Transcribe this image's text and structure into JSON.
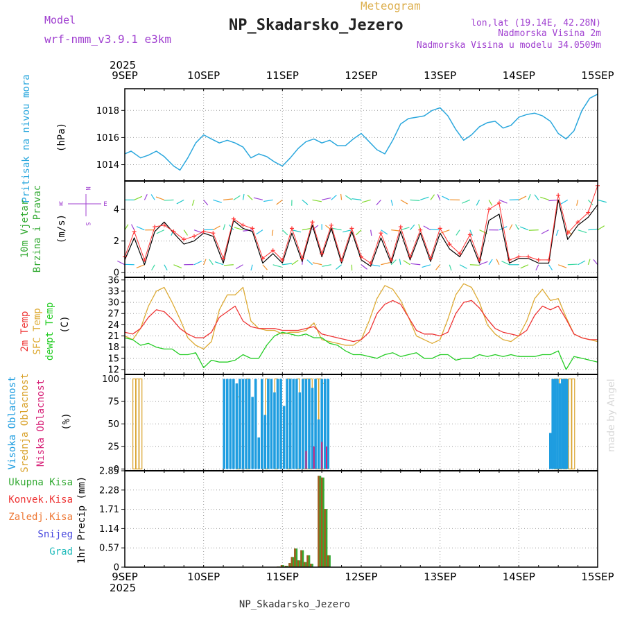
{
  "header": {
    "model_label": "Model",
    "model_name": "wrf-nmm_v3.9.1 e3km",
    "chart_kind": "Meteogram",
    "station": "NP_Skadarsko_Jezero",
    "lonlat": "lon,lat (19.14E, 42.28N)",
    "altitude": "Nadmorska Visina 2m",
    "model_altitude": "Nadmorska Visina u modelu 34.0509m",
    "footer_station": "NP_Skadarsko_Jezero",
    "watermark": "made by Angel"
  },
  "colors": {
    "pressure": "#2aa7dd",
    "wind_speed": "#000000",
    "wind_gust": "#ff3333",
    "temp2m": "#ee3333",
    "sfc_temp": "#ddaa33",
    "dewpt": "#22cc22",
    "cloud_high": "#1e9de0",
    "cloud_mid": "#d9a22b",
    "cloud_low": "#d8257a",
    "precip_total": "#33aa33",
    "precip_conv": "#ee3333",
    "precip_frozen": "#ee7733",
    "precip_snow": "#4444dd",
    "precip_graupel": "#22bbbb",
    "model_purple": "#a040d0",
    "meteogram_gold": "#ddb050"
  },
  "axis": {
    "year_top": "2025",
    "year_bottom": "2025",
    "dates": [
      "9SEP",
      "10SEP",
      "11SEP",
      "12SEP",
      "13SEP",
      "14SEP",
      "15SEP"
    ]
  },
  "chart_data": [
    {
      "type": "line",
      "panel": "pressure",
      "ylabel_main": "Pritisak na nivou mora",
      "unit": "(hPa)",
      "yticks": [
        "1014",
        "1016",
        "1018"
      ],
      "ylim": [
        1012.8,
        1019.6
      ],
      "grid": true,
      "x_days": [
        0,
        0.08,
        0.2,
        0.3,
        0.4,
        0.5,
        0.62,
        0.7,
        0.8,
        0.9,
        1.0,
        1.1,
        1.2,
        1.3,
        1.4,
        1.5,
        1.6,
        1.7,
        1.8,
        1.9,
        2.0,
        2.1,
        2.2,
        2.3,
        2.4,
        2.5,
        2.6,
        2.7,
        2.8,
        2.9,
        3.0,
        3.1,
        3.2,
        3.3,
        3.4,
        3.5,
        3.6,
        3.7,
        3.8,
        3.9,
        4.0,
        4.1,
        4.2,
        4.3,
        4.4,
        4.5,
        4.6,
        4.7,
        4.8,
        4.9,
        5.0,
        5.1,
        5.2,
        5.3,
        5.4,
        5.5,
        5.6,
        5.7,
        5.8,
        5.9,
        6.0
      ],
      "series": [
        {
          "values": [
            1014.8,
            1015.0,
            1014.5,
            1014.7,
            1015.0,
            1014.6,
            1013.9,
            1013.6,
            1014.5,
            1015.6,
            1016.2,
            1015.9,
            1015.6,
            1015.8,
            1015.6,
            1015.3,
            1014.5,
            1014.8,
            1014.6,
            1014.2,
            1013.9,
            1014.5,
            1015.2,
            1015.7,
            1015.9,
            1015.6,
            1015.8,
            1015.4,
            1015.4,
            1015.9,
            1016.3,
            1015.7,
            1015.1,
            1014.8,
            1015.8,
            1017.0,
            1017.4,
            1017.5,
            1017.6,
            1018.0,
            1018.2,
            1017.6,
            1016.6,
            1015.8,
            1016.2,
            1016.8,
            1017.1,
            1017.2,
            1016.7,
            1016.9,
            1017.5,
            1017.7,
            1017.8,
            1017.6,
            1017.2,
            1016.3,
            1015.9,
            1016.5,
            1018.0,
            1018.9,
            1019.2
          ]
        }
      ]
    },
    {
      "type": "line",
      "panel": "wind",
      "ylabel_main": "10m Vjetar",
      "ylabel_sub": "Brzina i Pravac",
      "unit": "(m/s)",
      "yticks": [
        "0",
        "2",
        "4"
      ],
      "ylim": [
        -0.3,
        5.8
      ],
      "grid": true,
      "compass_n": "N",
      "compass_s": "S",
      "compass_w": "W",
      "compass_e": "E",
      "x_days": [
        0,
        0.12,
        0.25,
        0.38,
        0.5,
        0.62,
        0.75,
        0.88,
        1.0,
        1.12,
        1.25,
        1.38,
        1.5,
        1.62,
        1.75,
        1.88,
        2.0,
        2.12,
        2.25,
        2.38,
        2.5,
        2.62,
        2.75,
        2.88,
        3.0,
        3.12,
        3.25,
        3.38,
        3.5,
        3.62,
        3.75,
        3.88,
        4.0,
        4.12,
        4.25,
        4.38,
        4.5,
        4.62,
        4.75,
        4.88,
        5.0,
        5.12,
        5.25,
        5.38,
        5.5,
        5.62,
        5.75,
        5.88,
        6.0
      ],
      "series": [
        {
          "name": "speed",
          "values": [
            0.8,
            2.2,
            0.5,
            2.6,
            3.2,
            2.5,
            1.8,
            2.0,
            2.5,
            2.3,
            0.6,
            3.3,
            2.8,
            2.6,
            0.6,
            1.2,
            0.6,
            2.5,
            0.7,
            3.0,
            1.0,
            2.8,
            0.6,
            2.6,
            0.8,
            0.4,
            2.2,
            0.6,
            2.6,
            0.8,
            2.5,
            0.7,
            2.5,
            1.5,
            1.0,
            2.1,
            0.6,
            3.3,
            3.7,
            0.6,
            0.9,
            0.9,
            0.6,
            0.6,
            4.6,
            2.1,
            3.0,
            3.5,
            4.3
          ]
        },
        {
          "name": "gust",
          "values": [
            1.0,
            2.6,
            0.8,
            2.9,
            3.0,
            2.6,
            2.1,
            2.3,
            2.6,
            2.5,
            0.9,
            3.4,
            3.0,
            2.8,
            0.9,
            1.4,
            0.8,
            2.8,
            0.9,
            3.2,
            1.2,
            3.0,
            0.8,
            2.8,
            1.0,
            0.6,
            2.5,
            0.8,
            2.9,
            1.0,
            2.7,
            0.9,
            2.8,
            1.8,
            1.2,
            2.4,
            0.8,
            4.0,
            4.4,
            0.8,
            1.0,
            1.0,
            0.8,
            0.8,
            4.9,
            2.5,
            3.2,
            3.8,
            5.5
          ]
        }
      ]
    },
    {
      "type": "line",
      "panel": "temperature",
      "ylabel_lines": [
        "2m Temp",
        "SFC Temp",
        "dewpt Temp"
      ],
      "unit": "(C)",
      "yticks": [
        "12",
        "15",
        "18",
        "21",
        "24",
        "27",
        "30",
        "33",
        "36"
      ],
      "ylim": [
        10.7,
        36.7
      ],
      "grid": true,
      "x_days": [
        0,
        0.1,
        0.2,
        0.3,
        0.4,
        0.5,
        0.6,
        0.7,
        0.8,
        0.9,
        1.0,
        1.1,
        1.2,
        1.3,
        1.4,
        1.5,
        1.6,
        1.7,
        1.8,
        1.9,
        2.0,
        2.1,
        2.2,
        2.3,
        2.4,
        2.5,
        2.6,
        2.7,
        2.8,
        2.9,
        3.0,
        3.1,
        3.2,
        3.3,
        3.4,
        3.5,
        3.6,
        3.7,
        3.8,
        3.9,
        4.0,
        4.1,
        4.2,
        4.3,
        4.4,
        4.5,
        4.6,
        4.7,
        4.8,
        4.9,
        5.0,
        5.1,
        5.2,
        5.3,
        5.4,
        5.5,
        5.6,
        5.7,
        5.8,
        5.9,
        6.0
      ],
      "series": [
        {
          "name": "2m Temp",
          "values": [
            22,
            21.5,
            23,
            26,
            28,
            27.5,
            25.5,
            23,
            21.5,
            20.5,
            20.5,
            22,
            26,
            27.5,
            29,
            25,
            23.5,
            23,
            23,
            23,
            22.5,
            22.5,
            22.5,
            23,
            23.5,
            21.5,
            21,
            20.5,
            20,
            19.5,
            20,
            22,
            27,
            29.5,
            30.5,
            29.5,
            26,
            22.5,
            21.5,
            21.5,
            21,
            22,
            27,
            30,
            30.5,
            28.5,
            25.5,
            23,
            22,
            21.5,
            21,
            22.5,
            26.5,
            29,
            28,
            29,
            25.5,
            21.5,
            20.5,
            20,
            20
          ]
        },
        {
          "name": "SFC Temp",
          "values": [
            21,
            20,
            23,
            29,
            33,
            34,
            30,
            25.5,
            20.5,
            18.5,
            17.5,
            19.5,
            28,
            32,
            32,
            34,
            25,
            23,
            22.5,
            22.5,
            21.5,
            22,
            22,
            22.5,
            24.5,
            20,
            19.5,
            19,
            18.5,
            18.5,
            20,
            25,
            31,
            34.5,
            33.5,
            30.5,
            26,
            21,
            20,
            19,
            20,
            25.5,
            32,
            35,
            34,
            30,
            24,
            21.5,
            20,
            19.5,
            21,
            25,
            31,
            33.5,
            30.5,
            31,
            26,
            21.5,
            20.5,
            20,
            19.5
          ]
        },
        {
          "name": "dewpt Temp",
          "values": [
            20.5,
            20,
            18.5,
            19,
            18,
            17.5,
            17.5,
            16,
            16,
            16.5,
            12.5,
            14.5,
            14,
            14,
            14.5,
            16,
            15,
            15,
            18.5,
            21,
            22,
            21.5,
            21,
            21.5,
            20.5,
            20.5,
            19,
            18.5,
            17,
            16,
            16,
            15.5,
            15,
            16,
            16.5,
            15.5,
            16,
            16.5,
            15,
            15,
            16,
            16,
            14.5,
            15,
            15,
            16,
            15.5,
            16,
            15.5,
            16,
            15.5,
            15.5,
            15.5,
            16,
            16,
            17,
            12,
            15.5,
            15,
            14.5,
            14
          ]
        }
      ]
    },
    {
      "type": "bar",
      "panel": "clouds",
      "ylabel_lines": [
        "Visoka Oblacnost",
        "Srednja Oblacnost",
        "Niska Oblacnost"
      ],
      "unit": "(%)",
      "yticks": [
        "0",
        "25",
        "50",
        "75",
        "100"
      ],
      "ylim": [
        -2,
        105
      ],
      "grid": true,
      "high_x_days": [
        1.26,
        1.3,
        1.34,
        1.38,
        1.42,
        1.46,
        1.5,
        1.54,
        1.58,
        1.62,
        1.66,
        1.7,
        1.74,
        1.78,
        1.82,
        1.86,
        1.9,
        1.94,
        1.98,
        2.02,
        2.06,
        2.1,
        2.14,
        2.18,
        2.22,
        2.26,
        2.3,
        2.34,
        2.38,
        2.42,
        2.46,
        2.5,
        2.54,
        2.58,
        5.4,
        5.43,
        5.46,
        5.49,
        5.52,
        5.55,
        5.58,
        5.61
      ],
      "high_values": [
        100,
        100,
        100,
        100,
        95,
        100,
        100,
        100,
        100,
        80,
        100,
        35,
        100,
        60,
        100,
        100,
        85,
        100,
        100,
        70,
        100,
        100,
        100,
        100,
        85,
        100,
        100,
        100,
        90,
        100,
        55,
        100,
        100,
        100,
        40,
        100,
        100,
        100,
        95,
        100,
        100,
        100
      ],
      "mid_x_days": [
        0.12,
        0.16,
        0.2,
        1.44,
        1.56,
        1.8,
        1.92,
        2.08,
        2.2,
        2.28,
        2.32,
        2.36,
        2.44,
        2.48,
        2.52,
        5.47,
        5.53,
        5.59,
        5.65,
        5.69
      ],
      "mid_values": [
        100,
        100,
        100,
        80,
        100,
        100,
        100,
        100,
        100,
        100,
        100,
        100,
        100,
        100,
        95,
        100,
        100,
        100,
        100,
        100
      ],
      "low_x_days": [
        2.3,
        2.4,
        2.5,
        2.56
      ],
      "low_values": [
        20,
        25,
        30,
        25
      ]
    },
    {
      "type": "bar",
      "panel": "precip",
      "ylabel_lines": [
        "Ukupna Kisa",
        "Konvek.Kisa",
        "Zaledj.Kisa",
        "Snijeg",
        "Grad"
      ],
      "unit_label": "1hr Precip (mm)",
      "yticks": [
        "0",
        "0.57",
        "1.14",
        "1.71",
        "2.28",
        "2.85"
      ],
      "ylim": [
        0,
        2.85
      ],
      "grid": true,
      "x_days": [
        1.95,
        2.0,
        2.05,
        2.1,
        2.13,
        2.17,
        2.21,
        2.25,
        2.29,
        2.33,
        2.37,
        2.47,
        2.51,
        2.55,
        2.59
      ],
      "values": [
        0.02,
        0.06,
        0.04,
        0.12,
        0.3,
        0.55,
        0.2,
        0.5,
        0.15,
        0.35,
        0.1,
        2.7,
        2.65,
        1.72,
        0.35
      ]
    }
  ]
}
